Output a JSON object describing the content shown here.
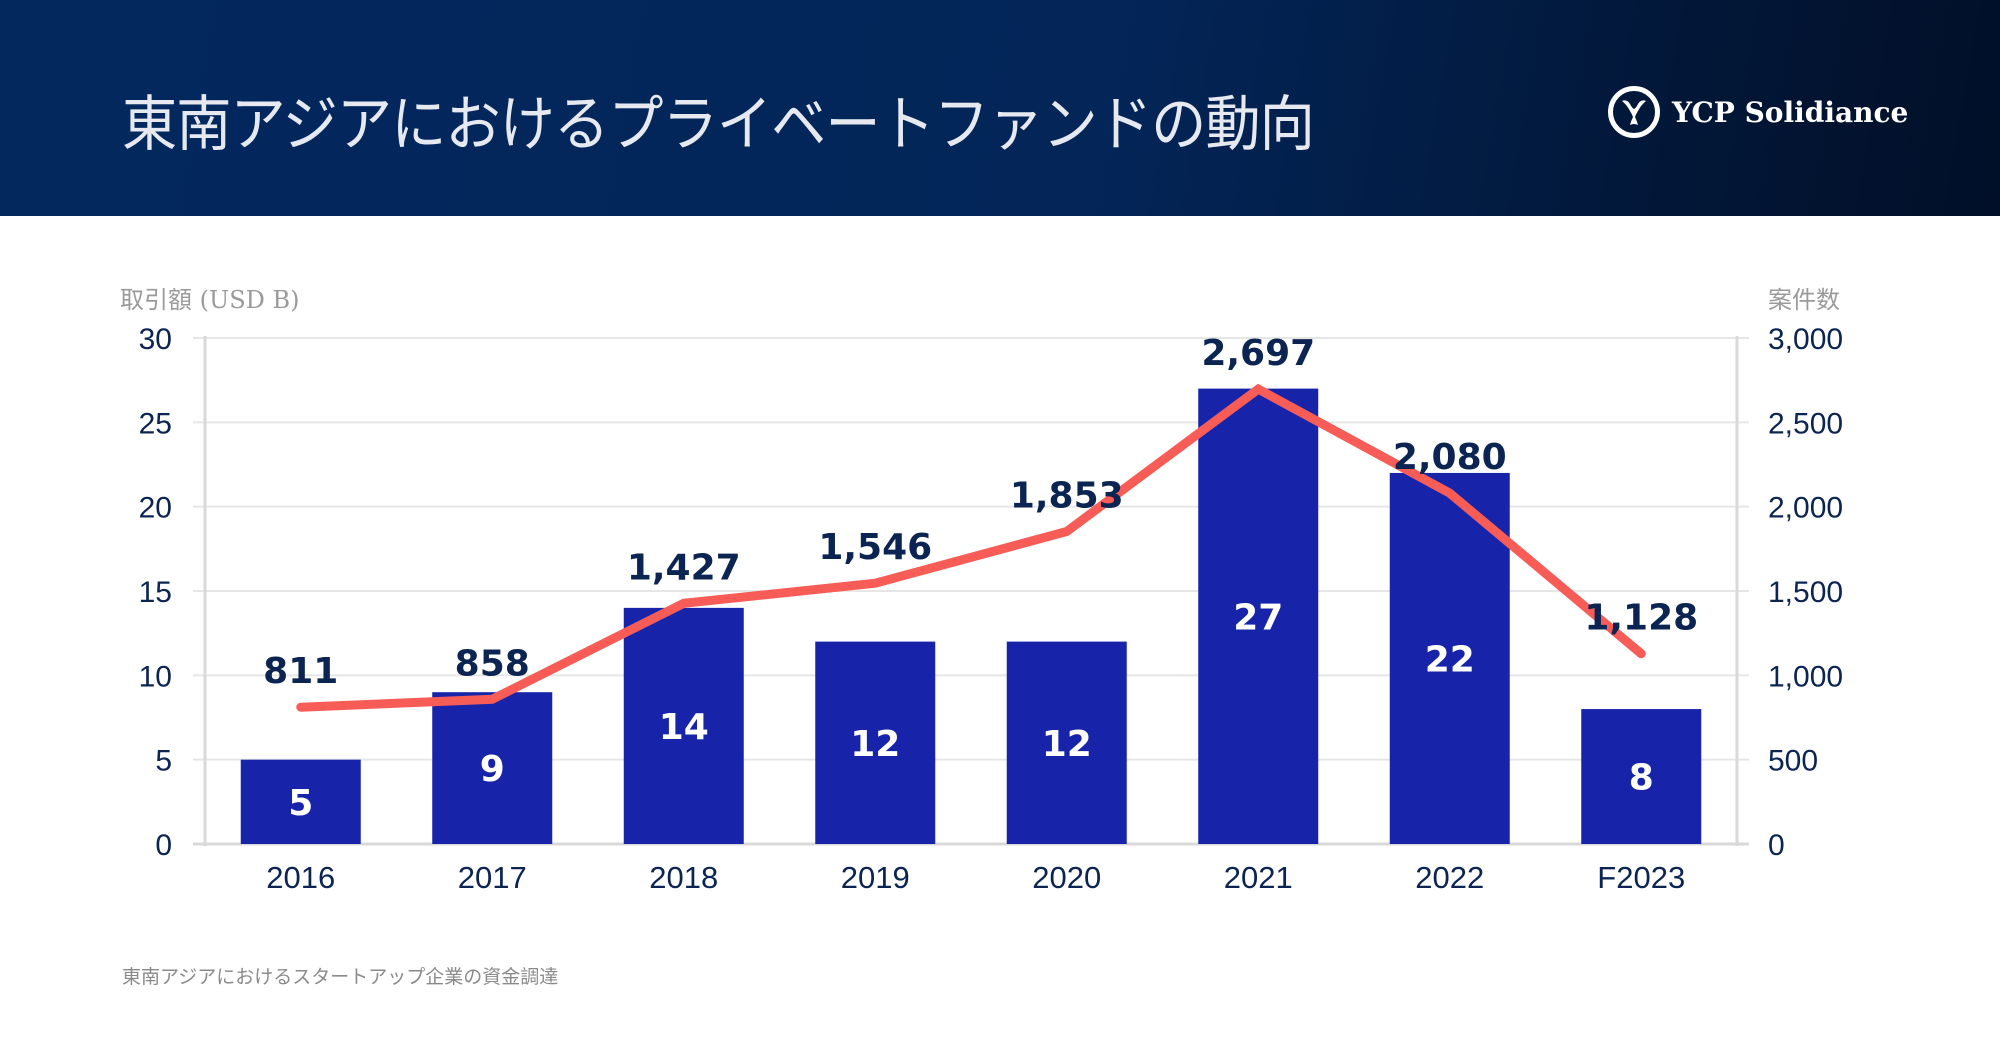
{
  "header": {
    "title": "東南アジアにおけるプライベートファンドの動向",
    "brand": "YCP Solidiance",
    "logo_icon": "ycp-logo-icon"
  },
  "footnote": "東南アジアにおけるスタートアップ企業の資金調達",
  "colors": {
    "header_bg": "#03285e",
    "bar": "#1724aa",
    "line": "#f75c57",
    "text_dark": "#0b2452",
    "grid": "#e6e6e6"
  },
  "chart_data": {
    "type": "bar+line",
    "title": "東南アジアにおけるプライベートファンドの動向",
    "categories": [
      "2016",
      "2017",
      "2018",
      "2019",
      "2020",
      "2021",
      "2022",
      "F2023"
    ],
    "series": [
      {
        "name": "取引額 (USD B)",
        "type": "bar",
        "axis": "left",
        "values": [
          5,
          9,
          14,
          12,
          12,
          27,
          22,
          8
        ]
      },
      {
        "name": "案件数",
        "type": "line",
        "axis": "right",
        "values": [
          811,
          858,
          1427,
          1546,
          1853,
          2697,
          2080,
          1128
        ]
      }
    ],
    "bar_labels": [
      "5",
      "9",
      "14",
      "12",
      "12",
      "27",
      "22",
      "8"
    ],
    "line_labels": [
      "811",
      "858",
      "1,427",
      "1,546",
      "1,853",
      "2,697",
      "2,080",
      "1,128"
    ],
    "ylabel_left": "取引額 (USD B)",
    "ylabel_right": "案件数",
    "ylim_left": [
      0,
      30
    ],
    "ylim_right": [
      0,
      3000
    ],
    "yticks_left": [
      "0",
      "5",
      "10",
      "15",
      "20",
      "25",
      "30"
    ],
    "yticks_right": [
      "0",
      "500",
      "1,000",
      "1,500",
      "2,000",
      "2,500",
      "3,000"
    ],
    "grid": true,
    "legend": "none"
  }
}
